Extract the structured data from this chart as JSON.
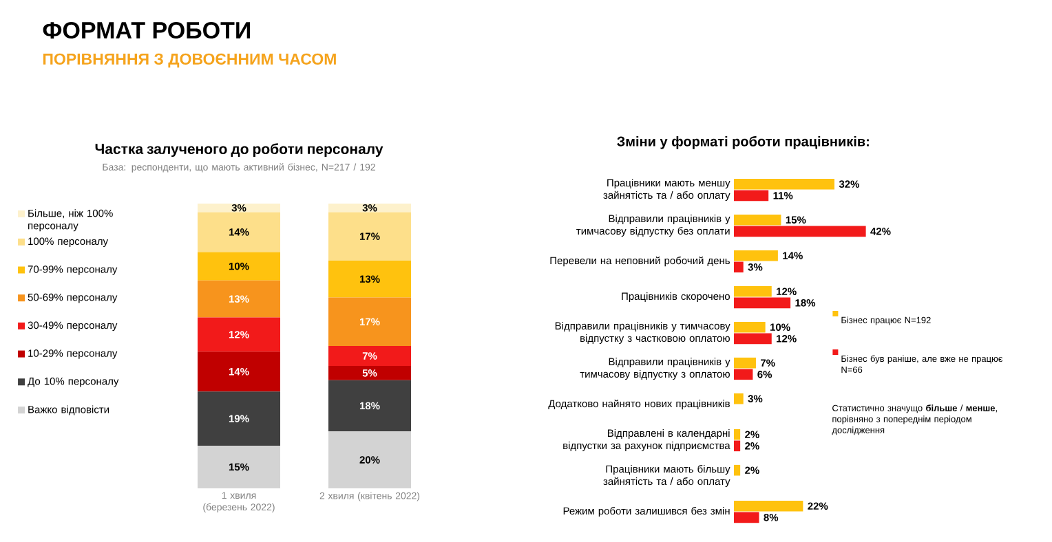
{
  "chart_data": [
    {
      "type": "bar",
      "stacked": true,
      "title": "Частка залученого до роботи персоналу",
      "subtitle": "База: респонденти, що мають активний бізнес, N=217 / 192",
      "annotations": [
        "ФОРМАТ РОБОТИ",
        "ПОРІВНЯННЯ З ДОВОЄННИМ ЧАСОМ"
      ],
      "categories": [
        "1 хвиля (березень 2022)",
        "2 хвиля (квітень 2022)"
      ],
      "legend": "left",
      "series": [
        {
          "name": "Важко відповісти",
          "color": "#d3d3d3",
          "values": [
            15,
            20
          ],
          "value_labels": [
            "15%",
            "20%"
          ]
        },
        {
          "name": "До 10% персоналу",
          "color": "#404040",
          "values": [
            19,
            18
          ],
          "value_labels": [
            "19%",
            "18%"
          ]
        },
        {
          "name": "10-29% персоналу",
          "color": "#c00000",
          "values": [
            14,
            5
          ],
          "value_labels": [
            "14%",
            "5%"
          ]
        },
        {
          "name": "30-49% персоналу",
          "color": "#f21a1a",
          "values": [
            12,
            7
          ],
          "value_labels": [
            "12%",
            "7%"
          ]
        },
        {
          "name": "50-69% персоналу",
          "color": "#f7941d",
          "values": [
            13,
            17
          ],
          "value_labels": [
            "13%",
            "17%"
          ]
        },
        {
          "name": "70-99% персоналу",
          "color": "#ffc20e",
          "values": [
            10,
            13
          ],
          "value_labels": [
            "10%",
            "13%"
          ]
        },
        {
          "name": "100% персоналу",
          "color": "#fddf8a",
          "values": [
            14,
            17
          ],
          "value_labels": [
            "14%",
            "17%"
          ]
        },
        {
          "name": "Більше, ніж 100% персоналу",
          "color": "#fdf1cc",
          "values": [
            3,
            3
          ],
          "value_labels": [
            "3%",
            "3%"
          ]
        }
      ]
    },
    {
      "type": "bar",
      "orientation": "horizontal",
      "title": "Зміни у форматі роботи працівників:",
      "annotations": [
        "Статистично значущо **більше** / **менше**, порівняно з попереднім періодом дослідження"
      ],
      "categories": [
        "Працівники мають меншу зайнятість та / або оплату",
        "Відправили працівників у тимчасову відпустку без оплати",
        "Перевели на неповний робочий день",
        "Працівників скорочено",
        "Відправили працівників у тимчасову відпустку з частковою оплатою",
        "Відправили працівників у тимчасову відпустку з оплатою",
        "Додатково найнято нових працівників",
        "Відправлені в календарні відпустки за рахунок підприємства",
        "Працівники мають більшу зайнятість та / або оплату",
        "Режим роботи залишився без змін"
      ],
      "legend": "right",
      "series": [
        {
          "name": "Бізнес працює N=192",
          "color": "#ffc20e",
          "values": [
            32,
            15,
            14,
            12,
            10,
            7,
            3,
            2,
            2,
            22
          ],
          "value_labels": [
            "32%",
            "15%",
            "14%",
            "12%",
            "10%",
            "7%",
            "3%",
            "2%",
            "2%",
            "22%"
          ]
        },
        {
          "name": "Бізнес був раніше, але вже не працює N=66",
          "color": "#f21a1a",
          "values": [
            11,
            42,
            3,
            18,
            12,
            6,
            null,
            2,
            null,
            8
          ],
          "value_labels": [
            "11%",
            "42%",
            "3%",
            "18%",
            "12%",
            "6%",
            null,
            "2%",
            null,
            "8%"
          ]
        }
      ]
    }
  ]
}
